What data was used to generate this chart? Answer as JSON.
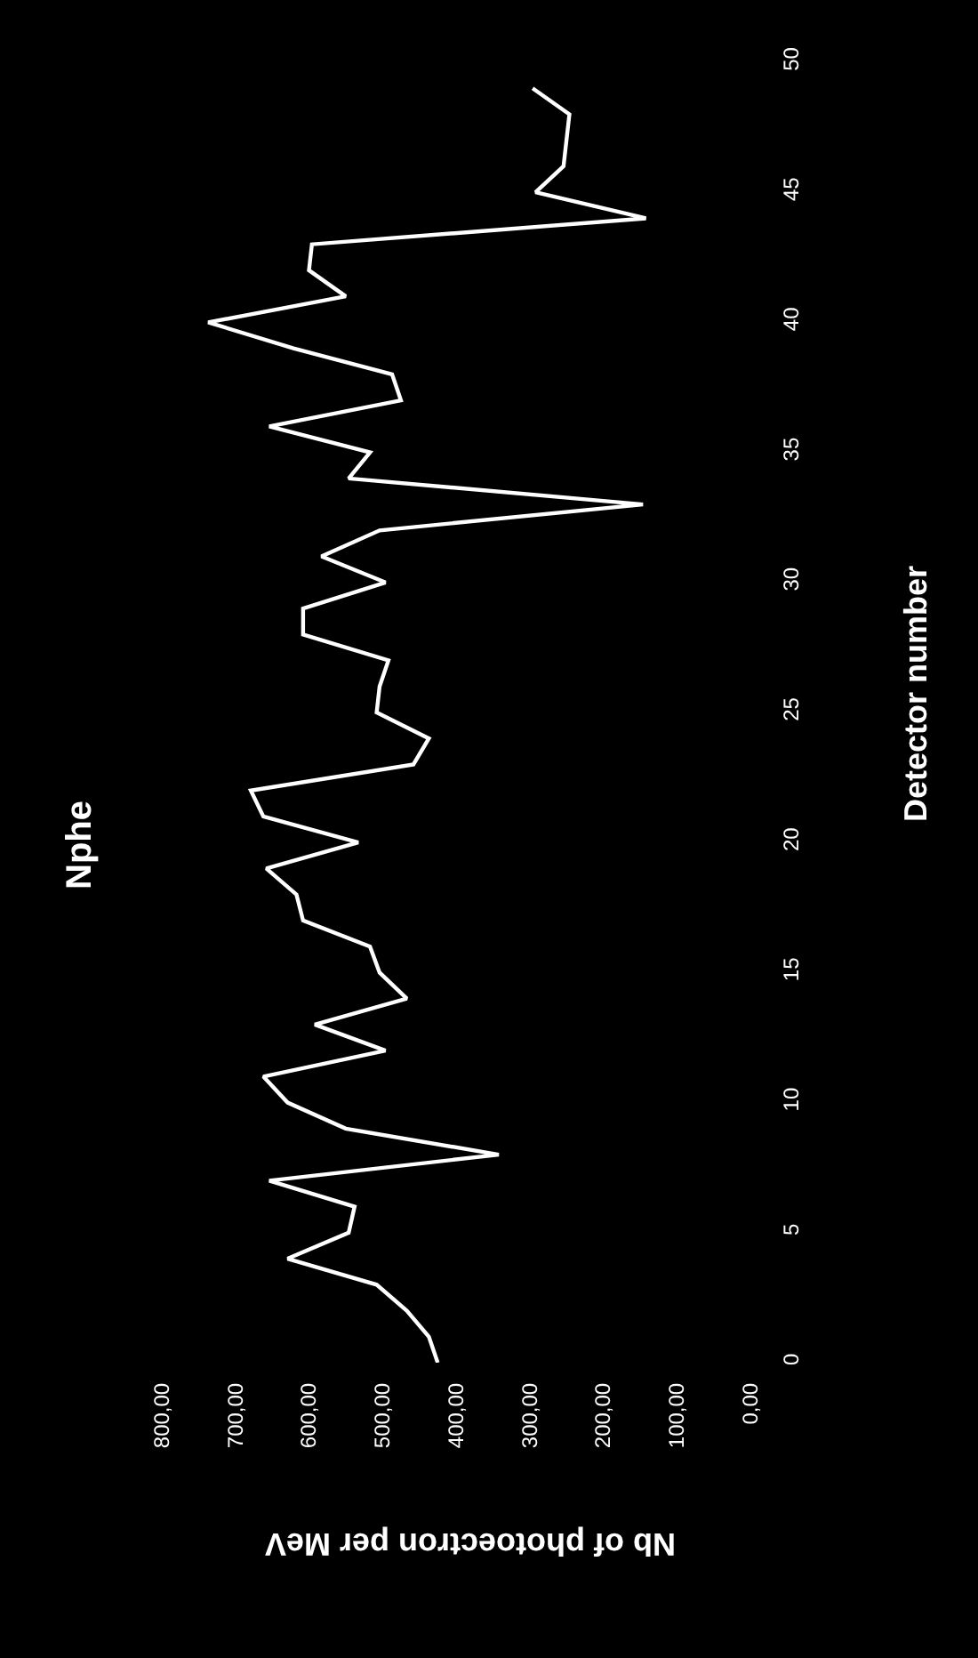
{
  "chart_data": {
    "type": "line",
    "title": "Nphe",
    "xlabel": "Nb of photoectron per MeV",
    "ylabel": "Detector number",
    "series": [
      {
        "color": "#ffffff",
        "x": [
          425,
          437,
          467,
          508,
          629,
          546,
          538,
          654,
          342,
          550,
          629,
          662,
          496,
          592,
          467,
          504,
          517,
          608,
          617,
          658,
          533,
          662,
          679,
          458,
          437,
          508,
          504,
          492,
          608,
          608,
          496,
          583,
          504,
          146,
          546,
          517,
          654,
          475,
          487,
          621,
          737,
          550,
          600,
          596,
          142,
          292,
          254,
          250,
          246,
          296
        ],
        "values": [
          0,
          1,
          2,
          3,
          4,
          5,
          6,
          7,
          8,
          9,
          10,
          11,
          12,
          13,
          14,
          15,
          16,
          17,
          18,
          19,
          20,
          21,
          22,
          23,
          24,
          25,
          26,
          27,
          28,
          29,
          30,
          31,
          32,
          33,
          34,
          35,
          36,
          37,
          38,
          39,
          40,
          41,
          42,
          43,
          44,
          45,
          46,
          47,
          48,
          49
        ]
      }
    ],
    "ylim": [
      0,
      50
    ],
    "yticks": [
      0,
      5,
      10,
      15,
      20,
      25,
      30,
      35,
      40,
      45,
      50
    ],
    "xlim": [
      800,
      0
    ],
    "xticks": [
      {
        "value": 0,
        "label": "0,00"
      },
      {
        "value": 100,
        "label": "100,00"
      },
      {
        "value": 200,
        "label": "200,00"
      },
      {
        "value": 300,
        "label": "300,00"
      },
      {
        "value": 400,
        "label": "400,00"
      },
      {
        "value": 500,
        "label": "500,00"
      },
      {
        "value": 600,
        "label": "600,00"
      },
      {
        "value": 700,
        "label": "700,00"
      },
      {
        "value": 800,
        "label": "800,00"
      }
    ],
    "grid": false,
    "legend": false,
    "line_style": "solid"
  }
}
